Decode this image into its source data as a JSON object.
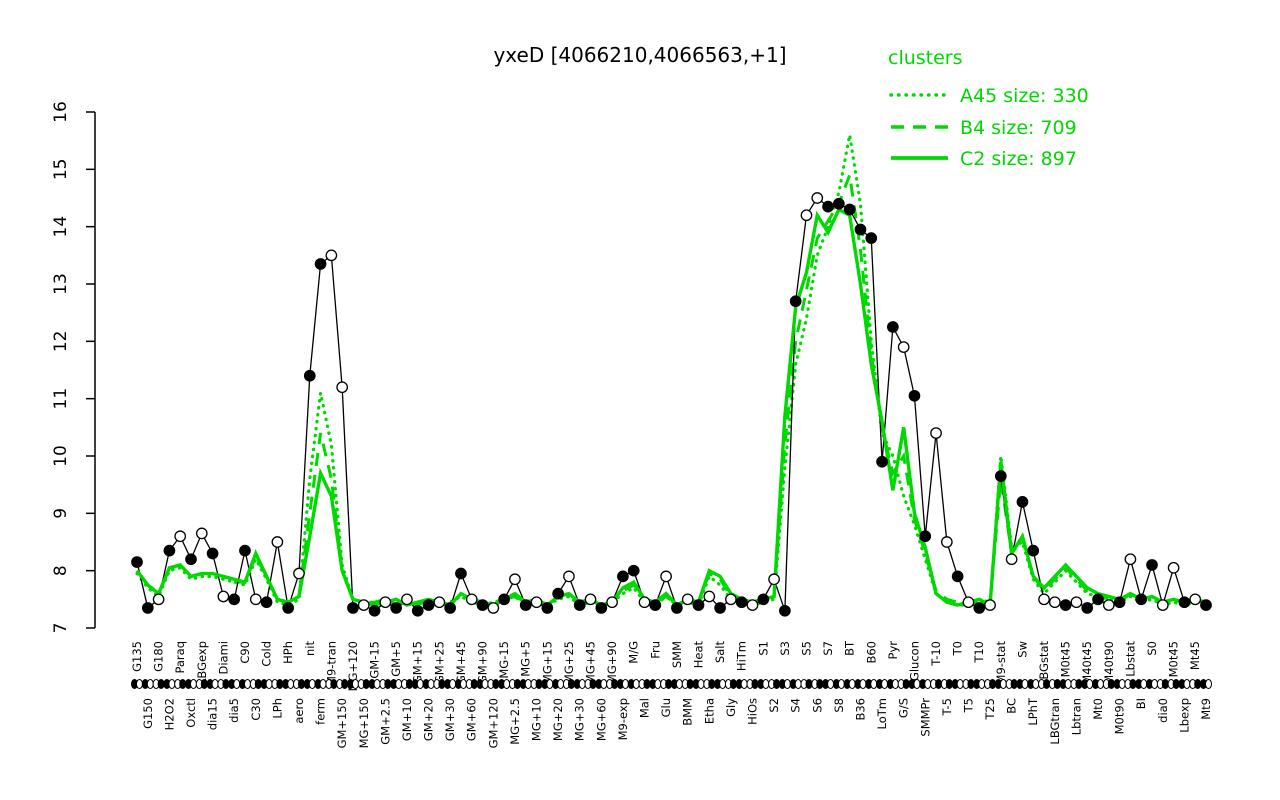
{
  "colors": {
    "cluster_green": "#00D900",
    "gene_black": "#000000"
  },
  "chart_data": {
    "type": "line",
    "title": "yxeD [4066210,4066563,+1]",
    "xlabel": "",
    "ylabel": "",
    "ylim": [
      7,
      16
    ],
    "yticks": [
      7,
      8,
      9,
      10,
      11,
      12,
      13,
      14,
      15,
      16
    ],
    "grid": false,
    "legend": {
      "title": "clusters",
      "position": "top-right",
      "entries": [
        {
          "label": "A45 size: 330",
          "style": "dotted"
        },
        {
          "label": "B4 size: 709",
          "style": "dashed"
        },
        {
          "label": "C2 size: 897",
          "style": "solid"
        }
      ]
    },
    "categories": [
      "G135",
      "G150",
      "G180",
      "H2O2",
      "Paraq",
      "Oxctl",
      "LBGexp",
      "dia15",
      "Diami",
      "dia5",
      "C90",
      "C30",
      "Cold",
      "LPh",
      "HPh",
      "aero",
      "nit",
      "ferm",
      "M9-tran",
      "GM+150",
      "MG+120",
      "MG+150",
      "GM-15",
      "GM+2.5",
      "GM+5",
      "GM+10",
      "GM+15",
      "GM+20",
      "GM+25",
      "GM+30",
      "GM+45",
      "GM+60",
      "GM+90",
      "GM+120",
      "MG-15",
      "MG+2.5",
      "MG+5",
      "MG+10",
      "MG+15",
      "MG+20",
      "MG+25",
      "MG+30",
      "MG+45",
      "MG+60",
      "MG+90",
      "M9-exp",
      "M/G",
      "Mal",
      "Fru",
      "Glu",
      "SMM",
      "BMM",
      "Heat",
      "Etha",
      "Salt",
      "Gly",
      "HiTm",
      "HiOs",
      "S1",
      "S2",
      "S3",
      "S4",
      "S5",
      "S6",
      "S7",
      "S8",
      "BT",
      "B36",
      "B60",
      "LoTm",
      "Pyr",
      "G/S",
      "Glucon",
      "SMMPr",
      "T-10",
      "T-5",
      "T0",
      "T5",
      "T10",
      "T25",
      "M9-stat",
      "BC",
      "Sw",
      "LPhT",
      "LBGstat",
      "LBGtran",
      "M0t45",
      "Lbtran",
      "M40t45",
      "Mt0",
      "M40t90",
      "M0t90",
      "Lbstat",
      "BI",
      "S0",
      "dia0",
      "M0t45",
      "Lbexp",
      "Mt45",
      "Mt9"
    ],
    "series": [
      {
        "name": "yxeD",
        "color": "#000000",
        "style": "solid-markers",
        "values": [
          8.15,
          7.35,
          7.5,
          8.35,
          8.6,
          8.2,
          8.65,
          8.3,
          7.55,
          7.5,
          8.35,
          7.5,
          7.45,
          8.5,
          7.35,
          7.95,
          11.4,
          13.35,
          13.5,
          11.2,
          7.35,
          7.4,
          7.3,
          7.45,
          7.35,
          7.5,
          7.3,
          7.4,
          7.45,
          7.35,
          7.95,
          7.5,
          7.4,
          7.35,
          7.5,
          7.85,
          7.4,
          7.45,
          7.35,
          7.6,
          7.9,
          7.4,
          7.5,
          7.35,
          7.45,
          7.9,
          8.0,
          7.45,
          7.4,
          7.9,
          7.35,
          7.5,
          7.4,
          7.55,
          7.35,
          7.5,
          7.45,
          7.4,
          7.5,
          7.85,
          7.3,
          12.7,
          14.2,
          14.5,
          14.35,
          14.4,
          14.3,
          13.95,
          13.8,
          9.9,
          12.25,
          11.9,
          11.05,
          8.6,
          10.4,
          8.5,
          7.9,
          7.45,
          7.35,
          7.4,
          9.65,
          8.2,
          9.2,
          8.35,
          7.5,
          7.45,
          7.4,
          7.45,
          7.35,
          7.5,
          7.4,
          7.45,
          8.2,
          7.5,
          8.1,
          7.4,
          8.05,
          7.45,
          7.5,
          7.4
        ],
        "marker_filled": [
          1,
          1,
          0,
          1,
          0,
          1,
          0,
          1,
          0,
          1,
          1,
          0,
          1,
          0,
          1,
          0,
          1,
          1,
          0,
          0,
          1,
          0,
          1,
          0,
          1,
          0,
          1,
          1,
          0,
          1,
          1,
          0,
          1,
          0,
          1,
          0,
          1,
          0,
          1,
          1,
          0,
          1,
          0,
          1,
          0,
          1,
          1,
          0,
          1,
          0,
          1,
          0,
          1,
          0,
          1,
          0,
          1,
          0,
          1,
          0,
          1,
          1,
          0,
          0,
          1,
          1,
          1,
          1,
          1,
          1,
          1,
          0,
          1,
          1,
          0,
          0,
          1,
          0,
          1,
          0,
          1,
          0,
          1,
          1,
          0,
          0,
          1,
          0,
          1,
          1,
          0,
          1,
          0,
          1,
          1,
          0,
          0,
          1,
          0,
          1
        ]
      },
      {
        "name": "A45",
        "size": 330,
        "color": "#00D900",
        "style": "dotted",
        "values": [
          7.95,
          7.7,
          7.55,
          8.0,
          8.05,
          7.85,
          7.9,
          7.9,
          7.85,
          7.8,
          7.75,
          8.2,
          7.85,
          7.45,
          7.4,
          7.5,
          9.6,
          11.1,
          10.2,
          8.1,
          7.5,
          7.45,
          7.4,
          7.45,
          7.5,
          7.4,
          7.45,
          7.5,
          7.4,
          7.45,
          7.55,
          7.45,
          7.4,
          7.45,
          7.5,
          7.55,
          7.4,
          7.45,
          7.4,
          7.5,
          7.55,
          7.4,
          7.45,
          7.4,
          7.45,
          7.6,
          7.7,
          7.45,
          7.4,
          7.55,
          7.4,
          7.45,
          7.4,
          7.9,
          7.75,
          7.5,
          7.45,
          7.4,
          7.45,
          7.5,
          9.8,
          11.6,
          12.4,
          13.5,
          14.0,
          14.6,
          15.6,
          14.4,
          12.0,
          10.4,
          10.0,
          9.3,
          8.8,
          8.2,
          7.6,
          7.45,
          7.4,
          7.4,
          7.45,
          7.4,
          10.0,
          8.4,
          8.5,
          7.85,
          7.6,
          7.8,
          8.0,
          7.8,
          7.6,
          7.55,
          7.5,
          7.45,
          7.55,
          7.45,
          7.5,
          7.4,
          7.45,
          7.4,
          7.45,
          7.4
        ]
      },
      {
        "name": "B4",
        "size": 709,
        "color": "#00D900",
        "style": "dashed",
        "values": [
          8.0,
          7.75,
          7.6,
          8.05,
          8.1,
          7.9,
          7.95,
          7.95,
          7.9,
          7.8,
          7.8,
          8.25,
          7.9,
          7.5,
          7.45,
          7.55,
          9.0,
          10.4,
          9.6,
          8.0,
          7.5,
          7.45,
          7.45,
          7.5,
          7.4,
          7.45,
          7.4,
          7.5,
          7.45,
          7.4,
          7.6,
          7.5,
          7.45,
          7.4,
          7.5,
          7.55,
          7.45,
          7.5,
          7.4,
          7.55,
          7.6,
          7.45,
          7.5,
          7.4,
          7.45,
          7.65,
          7.75,
          7.5,
          7.45,
          7.55,
          7.4,
          7.5,
          7.45,
          7.95,
          7.85,
          7.55,
          7.5,
          7.45,
          7.5,
          7.55,
          10.2,
          12.0,
          12.9,
          13.8,
          14.1,
          14.4,
          14.9,
          13.6,
          11.8,
          10.5,
          9.7,
          10.0,
          8.9,
          8.3,
          7.65,
          7.5,
          7.45,
          7.4,
          7.5,
          7.45,
          9.6,
          8.3,
          8.55,
          7.9,
          7.65,
          7.85,
          8.05,
          7.85,
          7.65,
          7.6,
          7.5,
          7.45,
          7.6,
          7.5,
          7.55,
          7.45,
          7.5,
          7.45,
          7.5,
          7.45
        ]
      },
      {
        "name": "C2",
        "size": 897,
        "color": "#00D900",
        "style": "solid",
        "values": [
          8.0,
          7.75,
          7.6,
          8.05,
          8.1,
          7.9,
          7.95,
          7.95,
          7.9,
          7.85,
          7.8,
          8.3,
          7.9,
          7.5,
          7.45,
          7.55,
          8.6,
          9.7,
          9.3,
          8.0,
          7.5,
          7.45,
          7.4,
          7.45,
          7.5,
          7.4,
          7.45,
          7.5,
          7.45,
          7.4,
          7.6,
          7.5,
          7.45,
          7.4,
          7.5,
          7.6,
          7.45,
          7.5,
          7.4,
          7.55,
          7.6,
          7.45,
          7.5,
          7.4,
          7.45,
          7.7,
          7.8,
          7.5,
          7.45,
          7.6,
          7.4,
          7.5,
          7.45,
          8.0,
          7.9,
          7.6,
          7.5,
          7.45,
          7.5,
          7.55,
          10.7,
          12.6,
          13.2,
          14.2,
          13.9,
          14.3,
          14.2,
          13.0,
          11.6,
          10.6,
          9.4,
          10.5,
          9.0,
          8.4,
          7.6,
          7.45,
          7.4,
          7.45,
          7.5,
          7.4,
          9.9,
          8.3,
          8.6,
          7.9,
          7.7,
          7.9,
          8.1,
          7.9,
          7.7,
          7.6,
          7.55,
          7.5,
          7.6,
          7.5,
          7.55,
          7.45,
          7.5,
          7.45,
          7.5,
          7.45
        ]
      }
    ]
  }
}
